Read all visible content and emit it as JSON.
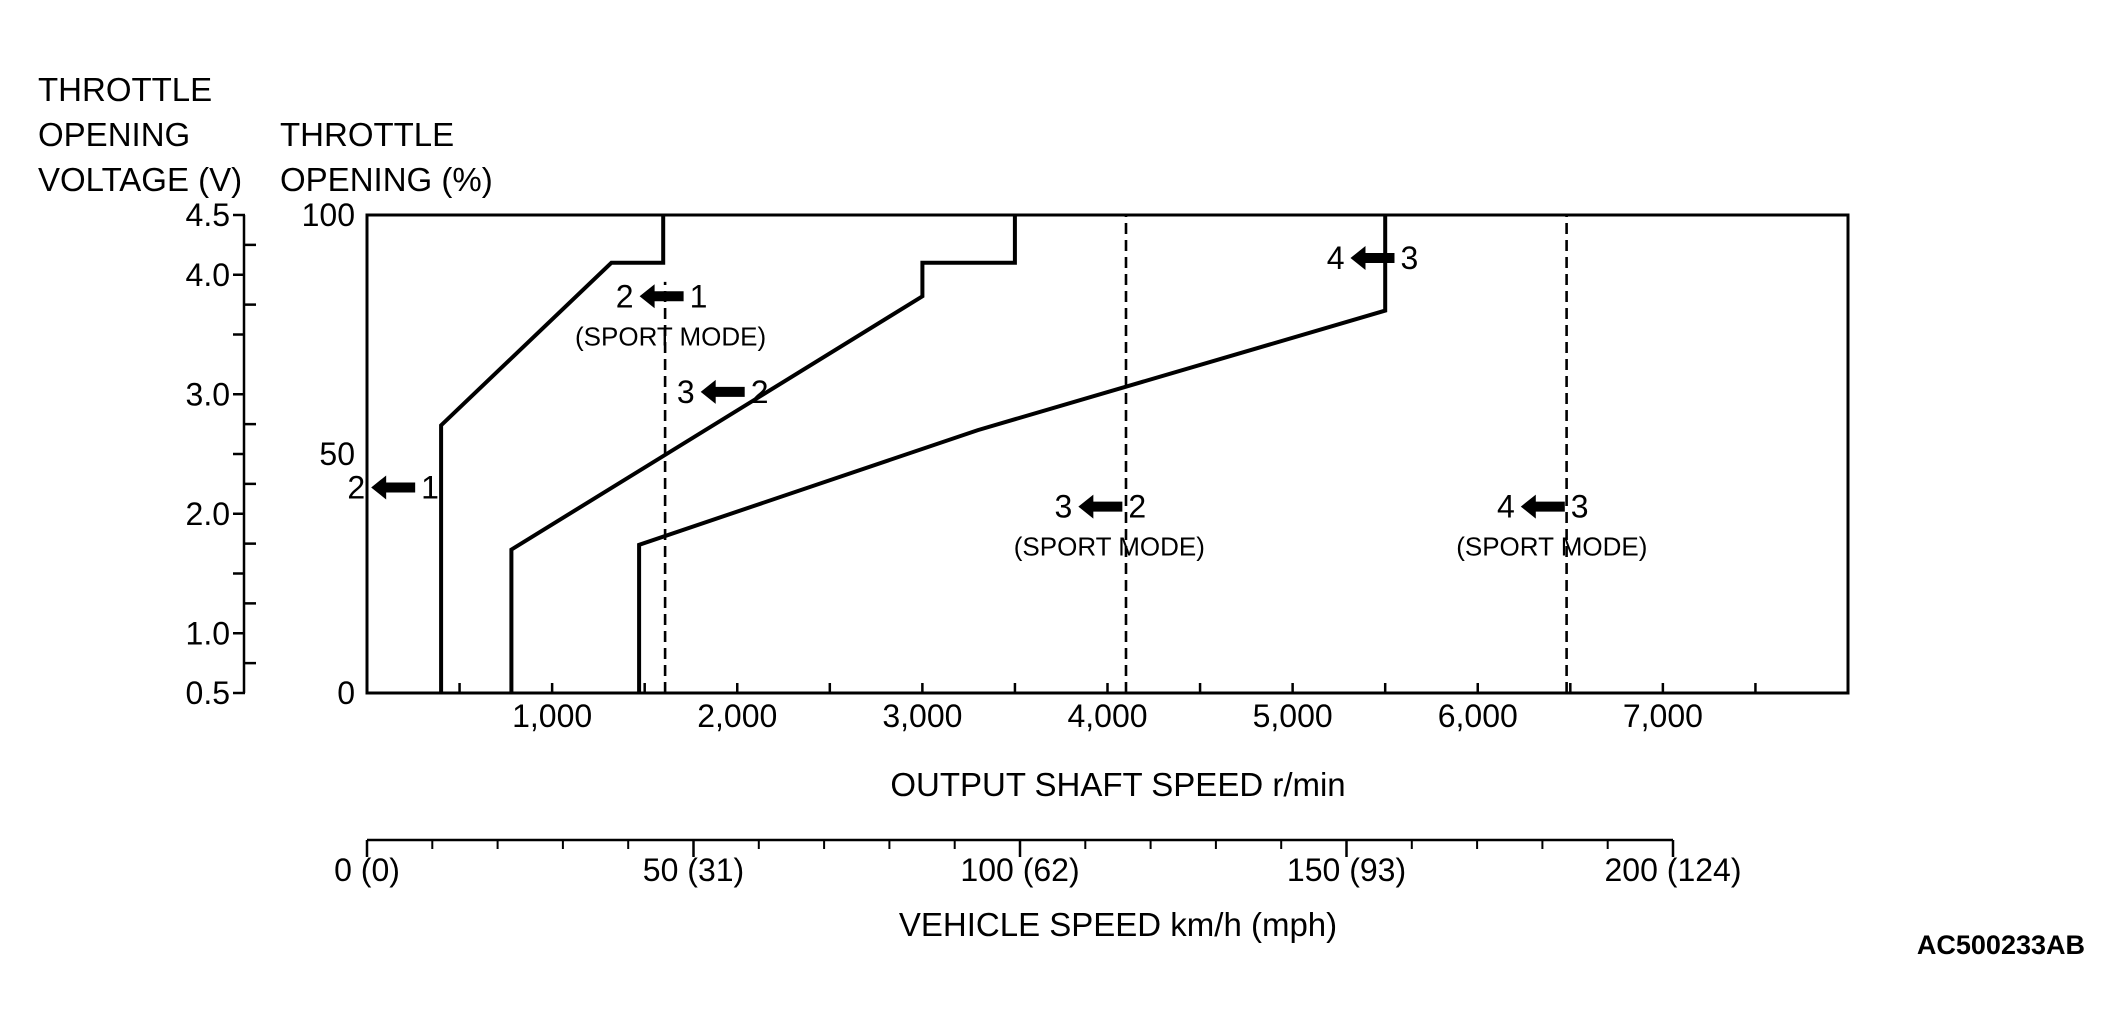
{
  "chart_data": {
    "type": "line",
    "title": "",
    "left_axis_title": [
      "THROTTLE",
      "OPENING",
      "VOLTAGE (V)"
    ],
    "y_axis_title": [
      "THROTTLE",
      "OPENING (%)"
    ],
    "xlabel": "OUTPUT SHAFT SPEED r/min",
    "x2label": "VEHICLE SPEED km/h (mph)",
    "figure_code": "AC500233AB",
    "xlim": [
      0,
      8000
    ],
    "ylim": [
      0,
      100
    ],
    "x_ticks": [
      1000,
      2000,
      3000,
      4000,
      5000,
      6000,
      7000
    ],
    "x_tick_labels": [
      "1,000",
      "2,000",
      "3,000",
      "4,000",
      "5,000",
      "6,000",
      "7,000"
    ],
    "y_ticks": [
      0,
      50,
      100
    ],
    "y_tick_labels": [
      "0",
      "50",
      "100"
    ],
    "voltage_ticks": [
      4.5,
      4.0,
      3.0,
      2.0,
      1.0,
      0.5
    ],
    "voltage_tick_labels": [
      "4.5",
      "4.0",
      "3.0",
      "2.0",
      "1.0",
      "0.5"
    ],
    "voltage_tick_at_percent": [
      100,
      87.5,
      62.5,
      37.5,
      12.5,
      0
    ],
    "voltage_minor_ticks_percent": [
      75,
      50,
      25
    ],
    "voltage_minor_ticks_level2_percent": [
      93.75,
      81.25,
      56.25,
      43.75,
      31.25,
      18.75,
      6.25
    ],
    "vehicle_speed_range_kmh": [
      0,
      200
    ],
    "vehicle_speed_ticks": [
      0,
      50,
      100,
      150,
      200
    ],
    "vehicle_speed_tick_labels": [
      "0 (0)",
      "50 (31)",
      "100 (62)",
      "150 (93)",
      "200 (124)"
    ],
    "vehicle_speed_minor_ticks": [
      10,
      20,
      30,
      40,
      60,
      70,
      80,
      90,
      110,
      120,
      130,
      140,
      160,
      170,
      180,
      190
    ],
    "series": [
      {
        "style": "solid",
        "points": [
          [
            400,
            0
          ],
          [
            400,
            56
          ],
          [
            1320,
            90
          ],
          [
            1600,
            90
          ],
          [
            1600,
            100
          ]
        ]
      },
      {
        "style": "solid",
        "points": [
          [
            780,
            0
          ],
          [
            780,
            30
          ],
          [
            3000,
            83
          ],
          [
            3000,
            90
          ],
          [
            3500,
            90
          ],
          [
            3500,
            100
          ]
        ]
      },
      {
        "style": "solid",
        "points": [
          [
            1470,
            0
          ],
          [
            1470,
            31
          ],
          [
            3300,
            55
          ],
          [
            5500,
            80
          ],
          [
            5500,
            100
          ]
        ]
      },
      {
        "style": "dashed",
        "points": [
          [
            1610,
            0
          ],
          [
            1610,
            86
          ]
        ]
      },
      {
        "style": "dashed",
        "points": [
          [
            4100,
            0
          ],
          [
            4100,
            100
          ]
        ]
      },
      {
        "style": "dashed",
        "points": [
          [
            6480,
            0
          ],
          [
            6480,
            100
          ]
        ]
      }
    ],
    "annotations": [
      {
        "from": "1",
        "to": "2",
        "sub": "",
        "x": 190,
        "y": 43
      },
      {
        "from": "1",
        "to": "2",
        "sub": "(SPORT MODE)",
        "x": 1640,
        "y": 83
      },
      {
        "from": "2",
        "to": "3",
        "sub": "",
        "x": 1970,
        "y": 63
      },
      {
        "from": "2",
        "to": "3",
        "sub": "(SPORT MODE)",
        "x": 4010,
        "y": 39
      },
      {
        "from": "3",
        "to": "4",
        "sub": "",
        "x": 5480,
        "y": 91
      },
      {
        "from": "3",
        "to": "4",
        "sub": "(SPORT MODE)",
        "x": 6400,
        "y": 39
      }
    ]
  }
}
